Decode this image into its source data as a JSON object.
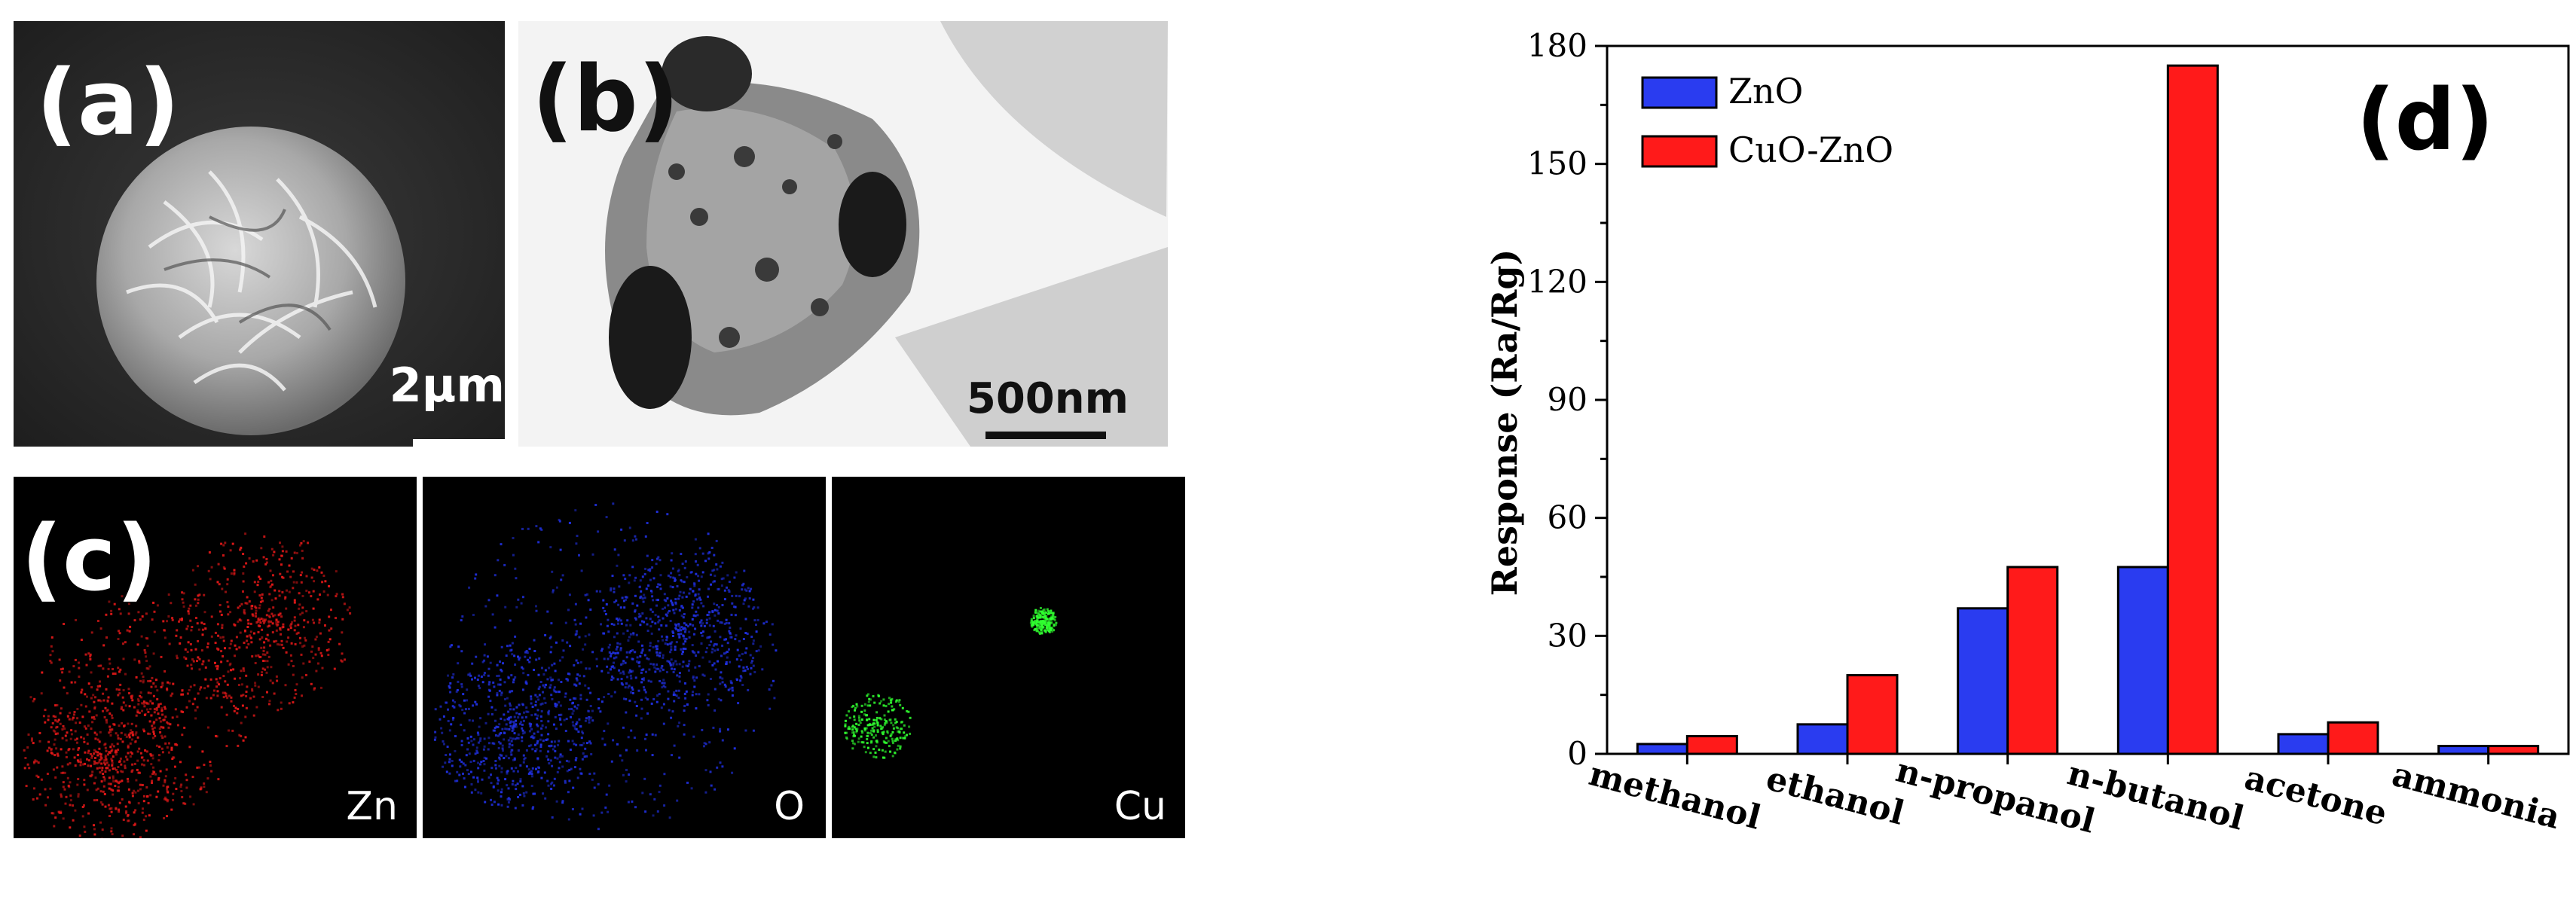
{
  "panels": {
    "a": {
      "label": "(a)",
      "scale_bar": "2μm"
    },
    "b": {
      "label": "(b)",
      "scale_bar": "500nm"
    },
    "c": {
      "label": "(c)",
      "maps": [
        "Zn",
        "O",
        "Cu"
      ],
      "map_colors": [
        "#e01818",
        "#2030e0",
        "#30ff30"
      ]
    }
  },
  "chart_data": {
    "type": "bar",
    "panel_label": "(d)",
    "categories": [
      "methanol",
      "ethanol",
      "n-propanol",
      "n-butanol",
      "acetone",
      "ammonia"
    ],
    "series": [
      {
        "name": "ZnO",
        "color": "#2a3cf0",
        "values": [
          2.5,
          7.5,
          37,
          47.5,
          5,
          2
        ]
      },
      {
        "name": "CuO-ZnO",
        "color": "#ff1a1a",
        "values": [
          4.5,
          20,
          47.5,
          175,
          8,
          2
        ]
      }
    ],
    "title": "",
    "xlabel": "",
    "ylabel": "Response (Ra/Rg)",
    "ylim": [
      0,
      180
    ],
    "yticks": [
      "0",
      "30",
      "60",
      "90",
      "120",
      "150",
      "180"
    ],
    "legend": "top-left",
    "grid": false
  }
}
